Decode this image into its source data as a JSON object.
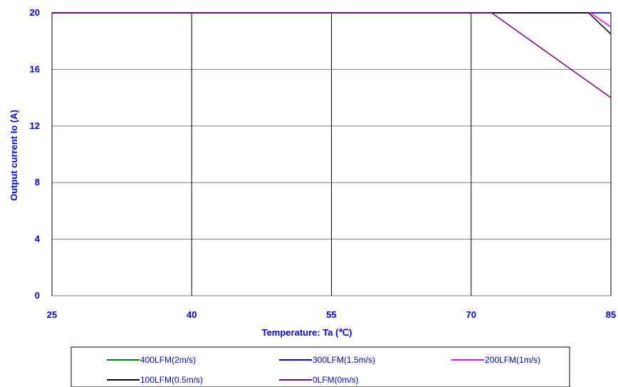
{
  "chart_data": {
    "type": "line",
    "title": "",
    "xlabel": "Temperature: Ta (℃)",
    "ylabel": "Output current  Io (A)",
    "xlim": [
      25,
      85
    ],
    "ylim": [
      0,
      20
    ],
    "xticks": [
      25,
      40,
      55,
      70,
      85
    ],
    "yticks": [
      0,
      4,
      8,
      12,
      16,
      20
    ],
    "grid": true,
    "legend_position": "bottom",
    "series": [
      {
        "name": "400LFM(2m/s)",
        "color": "#008000",
        "x": [
          25,
          85
        ],
        "y": [
          20,
          20
        ]
      },
      {
        "name": "300LFM(1.5m/s)",
        "color": "#0000ff",
        "x": [
          25,
          85
        ],
        "y": [
          20,
          20
        ]
      },
      {
        "name": "200LFM(1m/s)",
        "color": "#ff00ff",
        "x": [
          25,
          82.8,
          85
        ],
        "y": [
          20,
          20,
          19.0
        ]
      },
      {
        "name": "100LFM(0.5m/s)",
        "color": "#000000",
        "x": [
          25,
          82.6,
          85
        ],
        "y": [
          20,
          20,
          18.5
        ]
      },
      {
        "name": "0LFM(0m/s)",
        "color": "#800080",
        "x": [
          25,
          72.2,
          85
        ],
        "y": [
          20,
          20,
          14.0
        ]
      }
    ]
  }
}
